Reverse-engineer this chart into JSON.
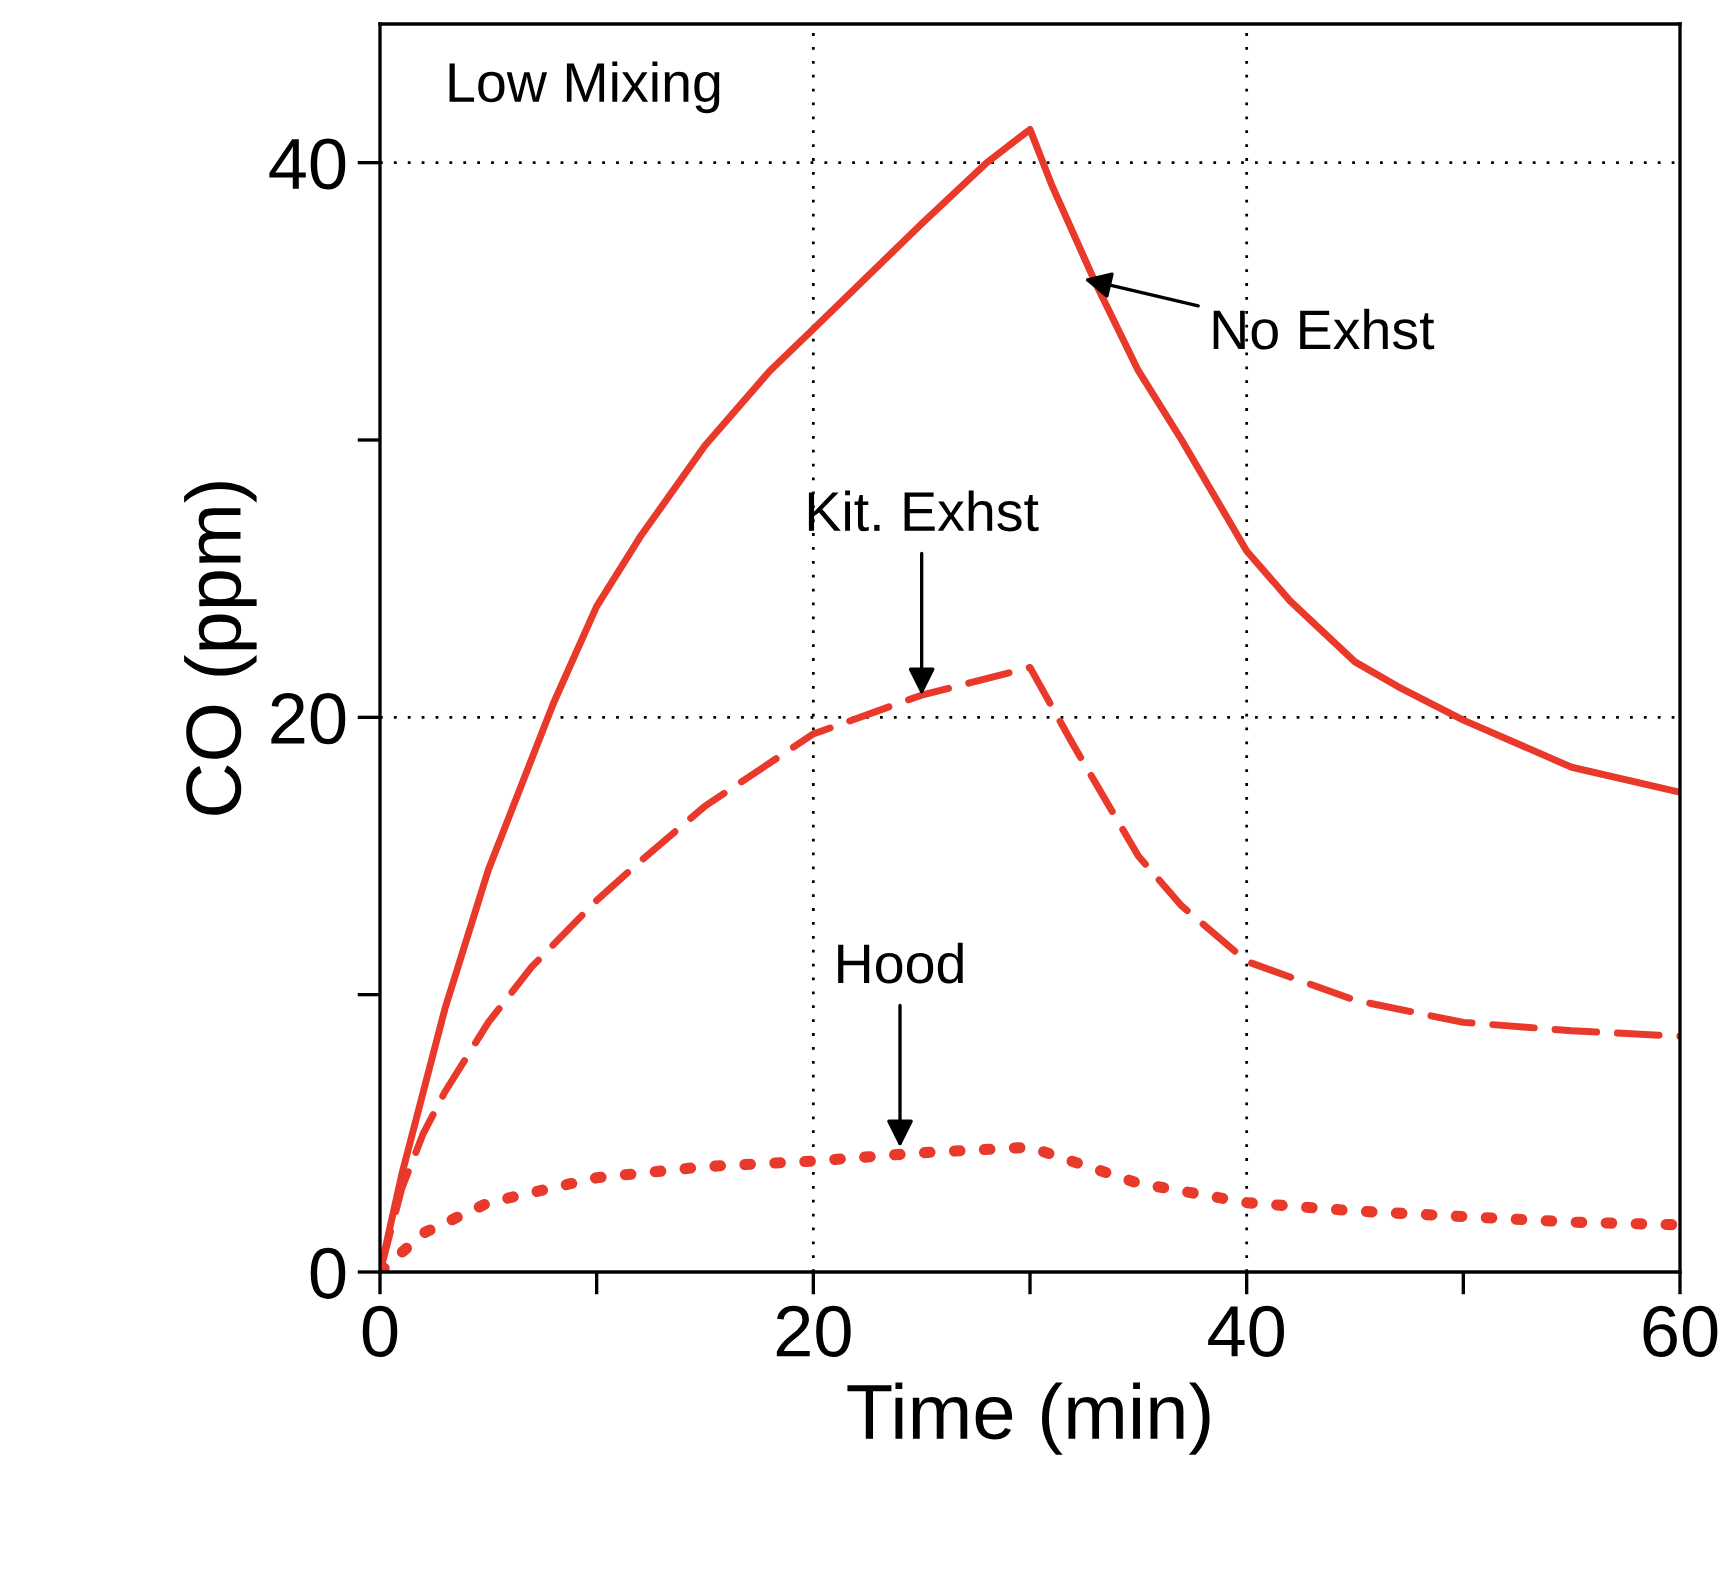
{
  "chart_data": {
    "type": "line",
    "xlabel": "Time (min)",
    "ylabel": "CO (ppm)",
    "xlim": [
      0,
      60
    ],
    "ylim": [
      0,
      45
    ],
    "xticks": [
      0,
      {
        "value": 10,
        "label": null
      },
      20,
      {
        "value": 30,
        "label": null
      },
      40,
      {
        "value": 50,
        "label": null
      },
      60
    ],
    "yticks": [
      0,
      {
        "value": 10,
        "label": null
      },
      20,
      {
        "value": 30,
        "label": null
      },
      40
    ],
    "grid": true,
    "marker": "none",
    "series": [
      {
        "color": "#e8392b",
        "line_style": "solid",
        "x": [
          0,
          1,
          2,
          3,
          5,
          6,
          8,
          10,
          12,
          15,
          18,
          20,
          25,
          28,
          30,
          31,
          33,
          35,
          37,
          40,
          42,
          45,
          47,
          50,
          55,
          60
        ],
        "values": [
          0,
          3.5,
          6.5,
          9.5,
          14.5,
          16.5,
          20.5,
          24,
          26.5,
          29.8,
          32.5,
          34,
          37.8,
          40,
          41.2,
          39.2,
          35.7,
          32.5,
          30,
          26,
          24.2,
          22,
          21.1,
          19.9,
          18.2,
          17.3
        ]
      },
      {
        "color": "#e8392b",
        "line_style": "dashed",
        "x": [
          0,
          1,
          2,
          3,
          5,
          7,
          10,
          12,
          15,
          20,
          25,
          30,
          32,
          35,
          37,
          40,
          45,
          50,
          55,
          60
        ],
        "values": [
          0,
          3,
          5,
          6.5,
          9,
          11,
          13.4,
          14.8,
          16.8,
          19.4,
          20.8,
          21.8,
          19,
          15,
          13.2,
          11.2,
          9.8,
          9,
          8.7,
          8.5
        ]
      },
      {
        "color": "#e8392b",
        "line_style": "dotted",
        "x": [
          0,
          2,
          5,
          10,
          15,
          20,
          25,
          30,
          35,
          40,
          45,
          50,
          55,
          60
        ],
        "values": [
          0,
          1.4,
          2.5,
          3.4,
          3.8,
          4,
          4.3,
          4.5,
          3.2,
          2.5,
          2.2,
          2,
          1.8,
          1.7
        ]
      }
    ],
    "annotations": [
      "Low Mixing",
      {
        "text": "No Exhst",
        "x": 32.5,
        "y": 35.8
      },
      {
        "text": "Kit. Exhst",
        "x": 25,
        "y": 20.8
      },
      {
        "text": "Hood",
        "x": 24,
        "y": 4.5
      }
    ]
  }
}
